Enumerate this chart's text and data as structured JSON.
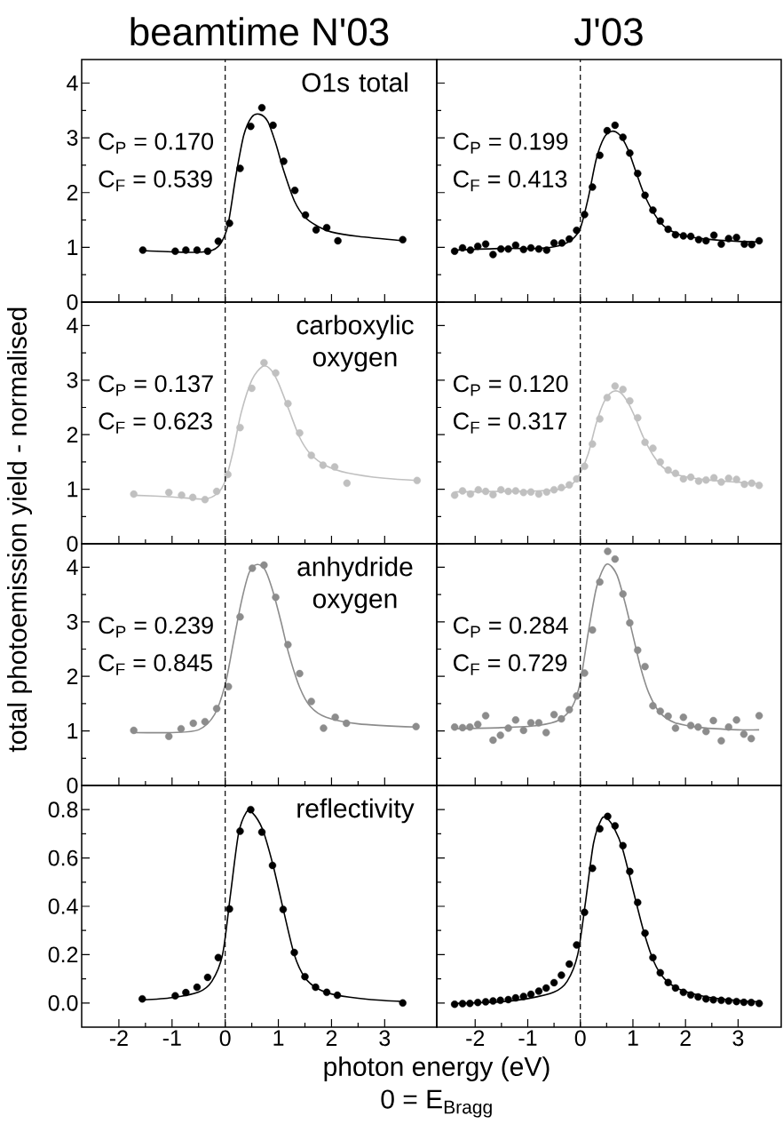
{
  "chart_data": [
    {
      "type": "scatter",
      "title": "beamtime N'03",
      "xlim": [
        -2.7,
        3.98
      ],
      "ylim": [
        0,
        4.43
      ],
      "xticks": [
        -2,
        -1,
        0,
        1,
        2,
        3
      ],
      "yticks": [
        0,
        1,
        2,
        3,
        4
      ],
      "tick_labels": "y",
      "ref_lines": [
        {
          "axis": "x",
          "value": 0,
          "line_style": "dashed"
        }
      ],
      "annotations": [
        "O1s total",
        "C$_{P}$ = 0.170",
        "C$_{F}$ = 0.539"
      ],
      "series": [
        {
          "marker": "circle",
          "color": "#000000",
          "x": [
            -1.55,
            -0.94,
            -0.74,
            -0.53,
            -0.33,
            -0.13,
            0.08,
            0.28,
            0.48,
            0.69,
            0.9,
            1.1,
            1.31,
            1.51,
            1.71,
            1.91,
            2.12,
            3.34
          ],
          "values": [
            0.95,
            0.93,
            0.95,
            0.95,
            0.93,
            1.11,
            1.44,
            2.44,
            3.21,
            3.55,
            3.23,
            2.57,
            2.04,
            1.59,
            1.32,
            1.36,
            1.12,
            1.14
          ]
        },
        {
          "type": "line",
          "color": "#000000",
          "x": [
            -1.55,
            -0.8,
            -0.3,
            -0.1,
            0.05,
            0.2,
            0.35,
            0.5,
            0.65,
            0.8,
            0.95,
            1.1,
            1.3,
            1.5,
            1.75,
            2.0,
            2.5,
            3.34
          ],
          "values": [
            0.94,
            0.91,
            0.93,
            1.05,
            1.4,
            2.3,
            3.05,
            3.38,
            3.43,
            3.3,
            2.9,
            2.4,
            1.85,
            1.55,
            1.38,
            1.28,
            1.2,
            1.12
          ]
        }
      ]
    },
    {
      "type": "scatter",
      "title": "J'03",
      "xlim": [
        -2.73,
        3.82
      ],
      "ylim": [
        0,
        4.43
      ],
      "xticks": [
        -2,
        -1,
        0,
        1,
        2,
        3
      ],
      "yticks": [
        0,
        1,
        2,
        3,
        4
      ],
      "tick_labels": false,
      "ref_lines": [
        {
          "axis": "x",
          "value": 0,
          "line_style": "dashed"
        }
      ],
      "annotations": [
        "C$_{P}$ = 0.199",
        "C$_{F}$ = 0.413"
      ],
      "series": [
        {
          "marker": "circle",
          "color": "#000000",
          "x": [
            -2.39,
            -2.24,
            -2.09,
            -1.95,
            -1.8,
            -1.66,
            -1.51,
            -1.37,
            -1.23,
            -1.08,
            -0.94,
            -0.79,
            -0.64,
            -0.5,
            -0.35,
            -0.21,
            -0.07,
            0.08,
            0.23,
            0.37,
            0.51,
            0.66,
            0.81,
            0.94,
            1.09,
            1.23,
            1.38,
            1.52,
            1.67,
            1.81,
            1.96,
            2.1,
            2.25,
            2.39,
            2.54,
            2.68,
            2.82,
            2.97,
            3.12,
            3.26,
            3.4
          ],
          "values": [
            0.93,
            0.99,
            0.95,
            1.02,
            1.06,
            0.87,
            0.97,
            0.97,
            1.04,
            0.96,
            0.99,
            0.97,
            0.95,
            1.08,
            1.08,
            1.15,
            1.31,
            1.6,
            2.1,
            2.68,
            3.13,
            3.23,
            3.01,
            2.72,
            2.35,
            1.95,
            1.68,
            1.48,
            1.33,
            1.23,
            1.21,
            1.2,
            1.14,
            1.12,
            1.22,
            1.06,
            1.16,
            1.18,
            1.06,
            1.05,
            1.12
          ]
        },
        {
          "type": "line",
          "color": "#000000",
          "x": [
            -2.39,
            -1.5,
            -0.8,
            -0.4,
            -0.15,
            0,
            0.15,
            0.3,
            0.45,
            0.6,
            0.75,
            0.9,
            1.05,
            1.2,
            1.4,
            1.6,
            1.9,
            2.4,
            3.0,
            3.4
          ],
          "values": [
            0.95,
            0.98,
            0.98,
            1.03,
            1.15,
            1.35,
            1.9,
            2.6,
            3.0,
            3.12,
            3.05,
            2.8,
            2.4,
            2.0,
            1.62,
            1.38,
            1.23,
            1.15,
            1.11,
            1.1
          ]
        }
      ]
    },
    {
      "type": "scatter",
      "xlim": [
        -2.7,
        3.98
      ],
      "ylim": [
        0,
        4.43
      ],
      "xticks": [
        -2,
        -1,
        0,
        1,
        2,
        3
      ],
      "yticks": [
        0,
        1,
        2,
        3,
        4
      ],
      "tick_labels": "y",
      "ylabel": "total photoemission yield - normalised",
      "ref_lines": [
        {
          "axis": "x",
          "value": 0,
          "line_style": "dashed"
        }
      ],
      "annotations": [
        "carboxylic oxygen",
        "C$_{P}$ = 0.137",
        "C$_{F}$ = 0.623"
      ],
      "series": [
        {
          "marker": "circle",
          "color": "#c0c0c0",
          "x": [
            -1.72,
            -1.06,
            -0.82,
            -0.61,
            -0.38,
            -0.16,
            0.05,
            0.28,
            0.5,
            0.73,
            0.95,
            1.18,
            1.4,
            1.62,
            1.84,
            2.06,
            2.29,
            3.61
          ],
          "values": [
            0.91,
            0.94,
            0.89,
            0.85,
            0.81,
            0.96,
            1.27,
            2.13,
            2.85,
            3.32,
            3.13,
            2.57,
            2.03,
            1.62,
            1.44,
            1.41,
            1.11,
            1.16
          ]
        },
        {
          "type": "line",
          "color": "#c0c0c0",
          "x": [
            -1.72,
            -1.0,
            -0.4,
            -0.15,
            0,
            0.15,
            0.3,
            0.5,
            0.7,
            0.85,
            1.0,
            1.2,
            1.4,
            1.6,
            1.9,
            2.3,
            3.0,
            3.61
          ],
          "values": [
            0.89,
            0.86,
            0.82,
            0.92,
            1.15,
            1.7,
            2.4,
            3.0,
            3.25,
            3.2,
            2.95,
            2.45,
            1.95,
            1.65,
            1.43,
            1.3,
            1.2,
            1.16
          ]
        }
      ]
    },
    {
      "type": "scatter",
      "xlim": [
        -2.73,
        3.82
      ],
      "ylim": [
        0,
        4.43
      ],
      "xticks": [
        -2,
        -1,
        0,
        1,
        2,
        3
      ],
      "yticks": [
        0,
        1,
        2,
        3,
        4
      ],
      "tick_labels": false,
      "ref_lines": [
        {
          "axis": "x",
          "value": 0,
          "line_style": "dashed"
        }
      ],
      "annotations": [
        "C$_{P}$ = 0.120",
        "C$_{F}$ = 0.317"
      ],
      "series": [
        {
          "marker": "circle",
          "color": "#c0c0c0",
          "x": [
            -2.39,
            -2.24,
            -2.09,
            -1.94,
            -1.8,
            -1.66,
            -1.51,
            -1.37,
            -1.23,
            -1.08,
            -0.94,
            -0.79,
            -0.64,
            -0.5,
            -0.36,
            -0.21,
            -0.07,
            0.08,
            0.23,
            0.37,
            0.51,
            0.66,
            0.81,
            0.94,
            1.09,
            1.23,
            1.38,
            1.52,
            1.67,
            1.81,
            1.96,
            2.1,
            2.25,
            2.39,
            2.54,
            2.68,
            2.82,
            2.97,
            3.12,
            3.26,
            3.4
          ],
          "values": [
            0.89,
            0.97,
            0.91,
            0.99,
            0.96,
            0.9,
            0.99,
            0.96,
            0.97,
            0.94,
            0.95,
            0.91,
            0.95,
            0.99,
            1.03,
            1.08,
            1.19,
            1.42,
            1.83,
            2.29,
            2.68,
            2.89,
            2.83,
            2.62,
            2.31,
            1.86,
            1.75,
            1.5,
            1.35,
            1.29,
            1.19,
            1.22,
            1.15,
            1.17,
            1.21,
            1.13,
            1.2,
            1.18,
            1.09,
            1.11,
            1.07
          ]
        },
        {
          "type": "line",
          "color": "#c0c0c0",
          "x": [
            -2.39,
            -1.5,
            -0.8,
            -0.4,
            -0.15,
            0,
            0.15,
            0.3,
            0.45,
            0.6,
            0.75,
            0.9,
            1.05,
            1.2,
            1.4,
            1.6,
            1.9,
            2.4,
            3.0,
            3.4
          ],
          "values": [
            0.95,
            0.96,
            0.97,
            1.0,
            1.1,
            1.3,
            1.65,
            2.2,
            2.6,
            2.78,
            2.78,
            2.6,
            2.3,
            1.95,
            1.6,
            1.38,
            1.25,
            1.17,
            1.13,
            1.1
          ]
        }
      ]
    },
    {
      "type": "scatter",
      "xlim": [
        -2.7,
        3.98
      ],
      "ylim": [
        0,
        4.43
      ],
      "xticks": [
        -2,
        -1,
        0,
        1,
        2,
        3
      ],
      "yticks": [
        0,
        1,
        2,
        3,
        4
      ],
      "tick_labels": "y",
      "ref_lines": [
        {
          "axis": "x",
          "value": 0,
          "line_style": "dashed"
        }
      ],
      "annotations": [
        "anhydride oxygen",
        "C$_{P}$ = 0.239",
        "C$_{F}$ = 0.845"
      ],
      "series": [
        {
          "marker": "circle",
          "color": "#8c8c8c",
          "x": [
            -1.72,
            -1.06,
            -0.83,
            -0.6,
            -0.38,
            -0.16,
            0.06,
            0.28,
            0.51,
            0.73,
            0.95,
            1.18,
            1.4,
            1.62,
            1.85,
            2.07,
            2.28,
            3.59
          ],
          "values": [
            1.01,
            0.9,
            1.04,
            1.14,
            1.17,
            1.41,
            1.81,
            3.09,
            3.98,
            4.04,
            3.45,
            2.58,
            2.05,
            1.54,
            1.05,
            1.25,
            1.14,
            1.08
          ]
        },
        {
          "type": "line",
          "color": "#8c8c8c",
          "x": [
            -1.72,
            -1.0,
            -0.5,
            -0.2,
            0,
            0.15,
            0.3,
            0.45,
            0.6,
            0.75,
            0.9,
            1.05,
            1.2,
            1.4,
            1.6,
            1.9,
            2.5,
            3.59
          ],
          "values": [
            0.97,
            0.97,
            1.02,
            1.3,
            1.85,
            2.6,
            3.35,
            3.9,
            4.05,
            3.95,
            3.55,
            3.0,
            2.4,
            1.8,
            1.45,
            1.25,
            1.13,
            1.07
          ]
        }
      ]
    },
    {
      "type": "scatter",
      "xlim": [
        -2.73,
        3.82
      ],
      "ylim": [
        0,
        4.43
      ],
      "xticks": [
        -2,
        -1,
        0,
        1,
        2,
        3
      ],
      "yticks": [
        0,
        1,
        2,
        3,
        4
      ],
      "tick_labels": false,
      "ref_lines": [
        {
          "axis": "x",
          "value": 0,
          "line_style": "dashed"
        }
      ],
      "annotations": [
        "C$_{P}$ = 0.284",
        "C$_{F}$ = 0.729"
      ],
      "series": [
        {
          "marker": "circle",
          "color": "#8c8c8c",
          "x": [
            -2.39,
            -2.24,
            -2.1,
            -1.95,
            -1.8,
            -1.66,
            -1.52,
            -1.37,
            -1.23,
            -1.08,
            -0.94,
            -0.79,
            -0.65,
            -0.5,
            -0.36,
            -0.21,
            -0.07,
            0.08,
            0.23,
            0.37,
            0.52,
            0.66,
            0.81,
            0.94,
            1.09,
            1.23,
            1.38,
            1.52,
            1.67,
            1.81,
            1.96,
            2.1,
            2.24,
            2.39,
            2.53,
            2.68,
            2.82,
            2.97,
            3.11,
            3.25,
            3.4
          ],
          "values": [
            1.07,
            1.06,
            1.07,
            1.12,
            1.28,
            0.83,
            0.92,
            1.05,
            1.2,
            1.01,
            1.15,
            1.15,
            0.97,
            1.3,
            1.22,
            1.39,
            1.64,
            2.06,
            2.85,
            3.73,
            4.29,
            4.15,
            3.51,
            2.98,
            2.48,
            2.18,
            1.46,
            1.36,
            1.27,
            1.05,
            1.25,
            1.1,
            1.07,
            0.99,
            1.19,
            0.82,
            1.07,
            1.2,
            0.94,
            0.86,
            1.28
          ]
        },
        {
          "type": "line",
          "color": "#8c8c8c",
          "x": [
            -2.39,
            -1.5,
            -0.8,
            -0.4,
            -0.15,
            0,
            0.15,
            0.3,
            0.45,
            0.55,
            0.7,
            0.85,
            1.0,
            1.15,
            1.3,
            1.5,
            1.8,
            2.3,
            3.0,
            3.4
          ],
          "values": [
            1.04,
            1.06,
            1.1,
            1.2,
            1.45,
            1.9,
            2.8,
            3.6,
            4.0,
            4.05,
            3.85,
            3.35,
            2.75,
            2.15,
            1.7,
            1.35,
            1.15,
            1.06,
            1.02,
            1.02
          ]
        }
      ]
    },
    {
      "type": "scatter",
      "xlim": [
        -2.7,
        3.98
      ],
      "ylim": [
        -0.1,
        0.9
      ],
      "xticks": [
        -2,
        -1,
        0,
        1,
        2,
        3
      ],
      "yticks": [
        {
          "value": 0,
          "label": "0.0"
        },
        0.2,
        0.4,
        0.6,
        0.8
      ],
      "xlabel": "photon energy (eV)",
      "ref_lines": [
        {
          "axis": "x",
          "value": 0,
          "line_style": "dashed"
        }
      ],
      "annotations": [
        "reflectivity",
        "0 = E$_{Bragg}$"
      ],
      "series": [
        {
          "marker": "circle",
          "color": "#000000",
          "x": [
            -1.56,
            -0.94,
            -0.74,
            -0.53,
            -0.33,
            -0.13,
            0.08,
            0.28,
            0.48,
            0.69,
            0.89,
            1.09,
            1.3,
            1.5,
            1.7,
            1.91,
            2.11,
            3.34
          ],
          "values": [
            0.017,
            0.03,
            0.043,
            0.065,
            0.106,
            0.188,
            0.389,
            0.711,
            0.8,
            0.707,
            0.569,
            0.387,
            0.209,
            0.109,
            0.065,
            0.044,
            0.032,
            0.0
          ]
        },
        {
          "type": "line",
          "color": "#000000",
          "x": [
            -1.56,
            -1.0,
            -0.5,
            -0.25,
            -0.05,
            0.1,
            0.25,
            0.4,
            0.5,
            0.7,
            0.9,
            1.1,
            1.3,
            1.5,
            1.75,
            2.1,
            2.7,
            3.34
          ],
          "values": [
            0.012,
            0.022,
            0.045,
            0.09,
            0.2,
            0.45,
            0.7,
            0.79,
            0.79,
            0.72,
            0.57,
            0.38,
            0.2,
            0.105,
            0.058,
            0.032,
            0.015,
            0.006
          ]
        }
      ]
    },
    {
      "type": "scatter",
      "xlim": [
        -2.73,
        3.82
      ],
      "ylim": [
        -0.1,
        0.9
      ],
      "xticks": [
        -2,
        -1,
        0,
        1,
        2,
        3
      ],
      "yticks": [
        0,
        0.2,
        0.4,
        0.6,
        0.8
      ],
      "tick_labels": "x",
      "ref_lines": [
        {
          "axis": "x",
          "value": 0,
          "line_style": "dashed"
        }
      ],
      "series": [
        {
          "marker": "circle",
          "color": "#000000",
          "x": [
            -2.39,
            -2.24,
            -2.1,
            -1.95,
            -1.8,
            -1.66,
            -1.52,
            -1.37,
            -1.23,
            -1.08,
            -0.94,
            -0.79,
            -0.65,
            -0.5,
            -0.36,
            -0.21,
            -0.07,
            0.08,
            0.23,
            0.37,
            0.52,
            0.66,
            0.81,
            0.94,
            1.09,
            1.23,
            1.38,
            1.52,
            1.67,
            1.81,
            1.96,
            2.1,
            2.24,
            2.39,
            2.53,
            2.68,
            2.82,
            2.97,
            3.11,
            3.25,
            3.4
          ],
          "values": [
            -0.005,
            -0.003,
            -0.002,
            0.002,
            0.005,
            0.008,
            0.011,
            0.014,
            0.021,
            0.027,
            0.036,
            0.049,
            0.062,
            0.084,
            0.115,
            0.161,
            0.24,
            0.375,
            0.557,
            0.721,
            0.772,
            0.733,
            0.651,
            0.544,
            0.416,
            0.289,
            0.188,
            0.125,
            0.085,
            0.062,
            0.044,
            0.033,
            0.025,
            0.017,
            0.013,
            0.011,
            0.008,
            0.006,
            0.003,
            0.002,
            -0.002
          ]
        },
        {
          "type": "line",
          "color": "#000000",
          "x": [
            -2.39,
            -1.5,
            -1.0,
            -0.5,
            -0.25,
            -0.05,
            0.1,
            0.25,
            0.4,
            0.5,
            0.65,
            0.8,
            1.0,
            1.2,
            1.4,
            1.6,
            1.9,
            2.4,
            3.0,
            3.4
          ],
          "values": [
            -0.002,
            0.005,
            0.018,
            0.045,
            0.09,
            0.2,
            0.42,
            0.66,
            0.76,
            0.765,
            0.72,
            0.64,
            0.47,
            0.3,
            0.17,
            0.1,
            0.055,
            0.025,
            0.01,
            0.005
          ]
        }
      ]
    }
  ]
}
